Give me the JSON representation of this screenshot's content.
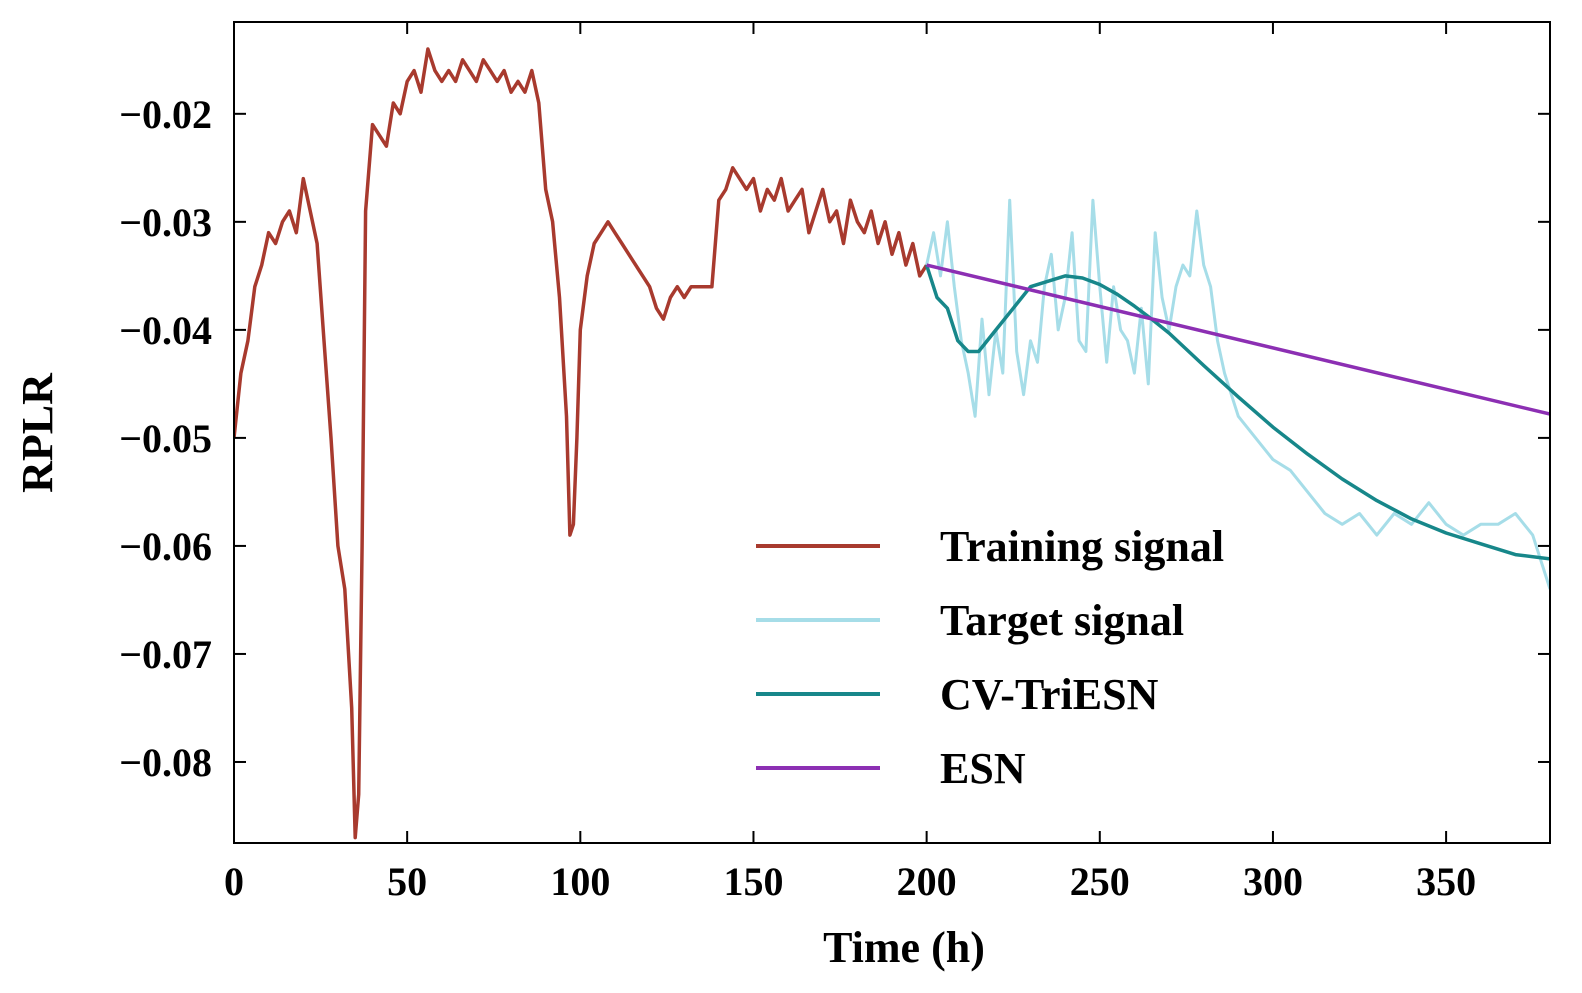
{
  "chart_data": {
    "type": "line",
    "title": "",
    "xlabel": "Time (h)",
    "ylabel": "RPLR",
    "xlim": [
      0,
      380
    ],
    "ylim": [
      -0.0875,
      -0.0115
    ],
    "xticks": [
      0,
      50,
      100,
      150,
      200,
      250,
      300,
      350
    ],
    "xtick_labels": [
      "0",
      "50",
      "100",
      "150",
      "200",
      "250",
      "300",
      "350"
    ],
    "yticks": [
      -0.08,
      -0.07,
      -0.06,
      -0.05,
      -0.04,
      -0.03,
      -0.02
    ],
    "ytick_labels": [
      "−0.08",
      "−0.07",
      "−0.06",
      "−0.05",
      "−0.04",
      "−0.03",
      "−0.02"
    ],
    "grid": false,
    "legend_position": "lower-right",
    "series": [
      {
        "name": "Training signal",
        "color": "#a83a2e",
        "x": [
          0,
          2,
          4,
          6,
          8,
          10,
          12,
          14,
          16,
          18,
          20,
          22,
          24,
          26,
          28,
          30,
          32,
          34,
          35,
          36,
          37,
          38,
          40,
          42,
          44,
          46,
          48,
          50,
          52,
          54,
          56,
          58,
          60,
          62,
          64,
          66,
          68,
          70,
          72,
          74,
          76,
          78,
          80,
          82,
          84,
          86,
          88,
          90,
          92,
          94,
          96,
          97,
          98,
          99,
          100,
          102,
          104,
          106,
          108,
          110,
          112,
          114,
          116,
          118,
          120,
          122,
          124,
          126,
          128,
          130,
          132,
          134,
          136,
          138,
          140,
          142,
          144,
          146,
          148,
          150,
          152,
          154,
          156,
          158,
          160,
          162,
          164,
          166,
          168,
          170,
          172,
          174,
          176,
          178,
          180,
          182,
          184,
          186,
          188,
          190,
          192,
          194,
          196,
          198,
          200
        ],
        "y": [
          -0.05,
          -0.044,
          -0.041,
          -0.036,
          -0.034,
          -0.031,
          -0.032,
          -0.03,
          -0.029,
          -0.031,
          -0.026,
          -0.029,
          -0.032,
          -0.041,
          -0.05,
          -0.06,
          -0.064,
          -0.075,
          -0.087,
          -0.083,
          -0.06,
          -0.029,
          -0.021,
          -0.022,
          -0.023,
          -0.019,
          -0.02,
          -0.017,
          -0.016,
          -0.018,
          -0.014,
          -0.016,
          -0.017,
          -0.016,
          -0.017,
          -0.015,
          -0.016,
          -0.017,
          -0.015,
          -0.016,
          -0.017,
          -0.016,
          -0.018,
          -0.017,
          -0.018,
          -0.016,
          -0.019,
          -0.027,
          -0.03,
          -0.037,
          -0.048,
          -0.059,
          -0.058,
          -0.05,
          -0.04,
          -0.035,
          -0.032,
          -0.031,
          -0.03,
          -0.031,
          -0.032,
          -0.033,
          -0.034,
          -0.035,
          -0.036,
          -0.038,
          -0.039,
          -0.037,
          -0.036,
          -0.037,
          -0.036,
          -0.036,
          -0.036,
          -0.036,
          -0.028,
          -0.027,
          -0.025,
          -0.026,
          -0.027,
          -0.026,
          -0.029,
          -0.027,
          -0.028,
          -0.026,
          -0.029,
          -0.028,
          -0.027,
          -0.031,
          -0.029,
          -0.027,
          -0.03,
          -0.029,
          -0.032,
          -0.028,
          -0.03,
          -0.031,
          -0.029,
          -0.032,
          -0.03,
          -0.033,
          -0.031,
          -0.034,
          -0.032,
          -0.035,
          -0.034
        ]
      },
      {
        "name": "Target signal",
        "color": "#a6dde8",
        "x": [
          200,
          202,
          204,
          206,
          208,
          210,
          212,
          214,
          216,
          218,
          220,
          222,
          224,
          226,
          228,
          230,
          232,
          234,
          236,
          238,
          240,
          242,
          244,
          246,
          248,
          250,
          252,
          254,
          256,
          258,
          260,
          262,
          264,
          266,
          268,
          270,
          272,
          274,
          276,
          278,
          280,
          282,
          284,
          286,
          288,
          290,
          295,
          300,
          305,
          310,
          315,
          320,
          325,
          330,
          335,
          340,
          345,
          350,
          355,
          360,
          365,
          370,
          375,
          380
        ],
        "y": [
          -0.034,
          -0.031,
          -0.035,
          -0.03,
          -0.036,
          -0.041,
          -0.044,
          -0.048,
          -0.039,
          -0.046,
          -0.04,
          -0.044,
          -0.028,
          -0.042,
          -0.046,
          -0.041,
          -0.043,
          -0.036,
          -0.033,
          -0.04,
          -0.037,
          -0.031,
          -0.041,
          -0.042,
          -0.028,
          -0.036,
          -0.043,
          -0.036,
          -0.04,
          -0.041,
          -0.044,
          -0.038,
          -0.045,
          -0.031,
          -0.037,
          -0.04,
          -0.036,
          -0.034,
          -0.035,
          -0.029,
          -0.034,
          -0.036,
          -0.041,
          -0.044,
          -0.046,
          -0.048,
          -0.05,
          -0.052,
          -0.053,
          -0.055,
          -0.057,
          -0.058,
          -0.057,
          -0.059,
          -0.057,
          -0.058,
          -0.056,
          -0.058,
          -0.059,
          -0.058,
          -0.058,
          -0.057,
          -0.059,
          -0.064
        ]
      },
      {
        "name": "CV-TriESN",
        "color": "#17878a",
        "x": [
          200,
          203,
          206,
          209,
          212,
          215,
          220,
          225,
          230,
          235,
          240,
          245,
          250,
          255,
          260,
          265,
          270,
          280,
          290,
          300,
          310,
          320,
          330,
          340,
          350,
          360,
          370,
          380
        ],
        "y": [
          -0.034,
          -0.037,
          -0.038,
          -0.041,
          -0.042,
          -0.042,
          -0.04,
          -0.038,
          -0.036,
          -0.0355,
          -0.035,
          -0.0352,
          -0.0358,
          -0.0367,
          -0.0378,
          -0.039,
          -0.0403,
          -0.0433,
          -0.0462,
          -0.049,
          -0.0515,
          -0.0538,
          -0.0558,
          -0.0575,
          -0.0588,
          -0.0598,
          -0.0608,
          -0.0612
        ]
      },
      {
        "name": "ESN",
        "color": "#8c2fb3",
        "x": [
          200,
          380
        ],
        "y": [
          -0.034,
          -0.0478
        ]
      }
    ]
  }
}
